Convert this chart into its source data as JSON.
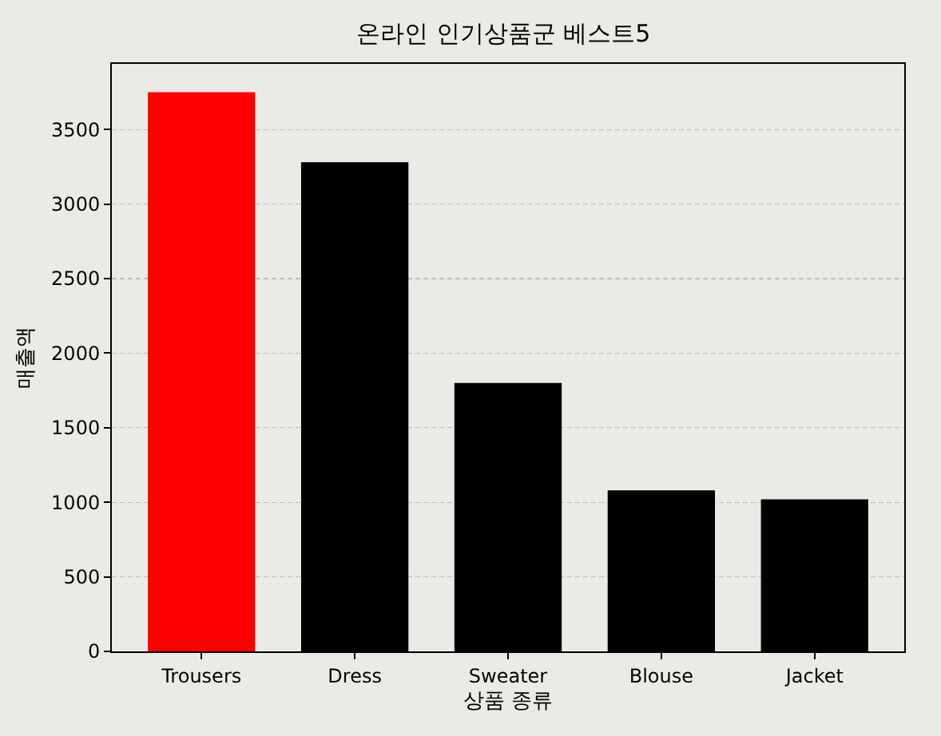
{
  "chart_data": {
    "type": "bar",
    "title": "온라인 인기상품군 베스트5",
    "xlabel": "상품 종류",
    "ylabel": "매출액",
    "categories": [
      "Trousers",
      "Dress",
      "Sweater",
      "Blouse",
      "Jacket"
    ],
    "values": [
      3750,
      3280,
      1800,
      1080,
      1020
    ],
    "colors": [
      "#ff0000",
      "#000000",
      "#000000",
      "#000000",
      "#000000"
    ],
    "ylim": [
      0,
      3940
    ],
    "yticks": [
      0,
      500,
      1000,
      1500,
      2000,
      2500,
      3000,
      3500
    ],
    "grid": "y"
  }
}
